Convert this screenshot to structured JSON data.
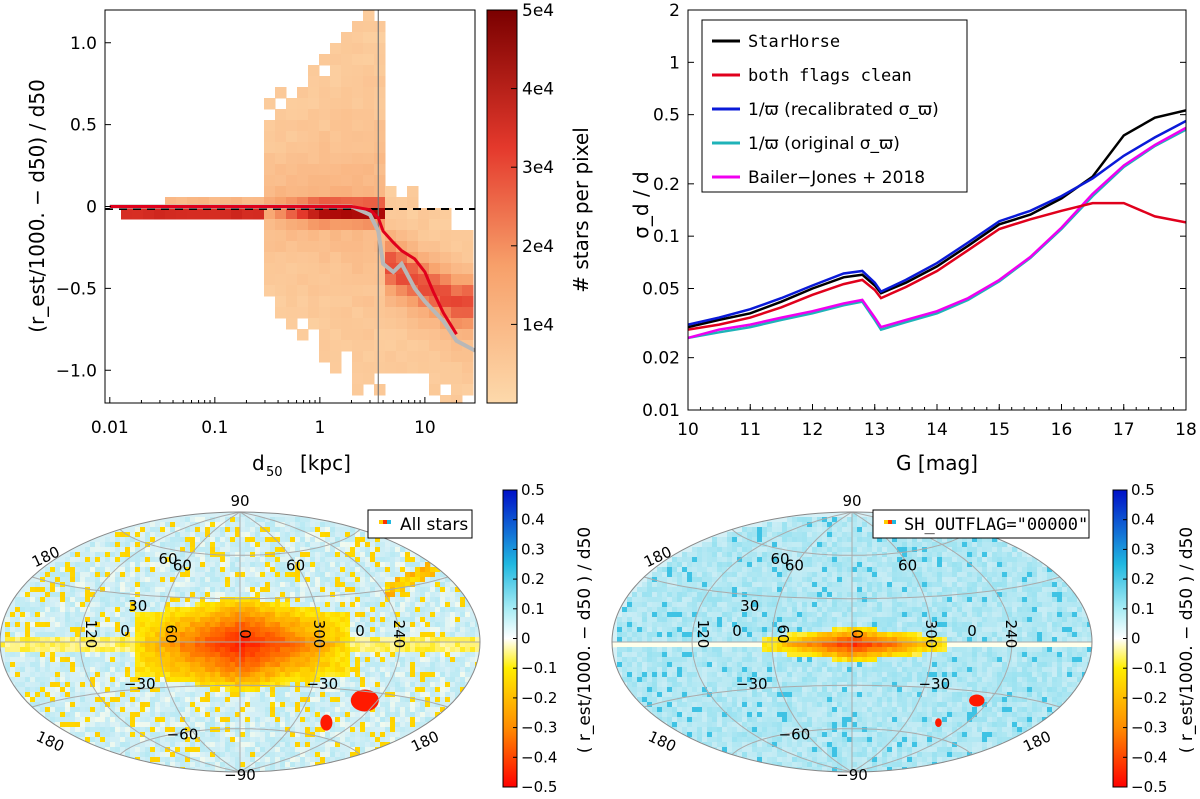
{
  "colors": {
    "starhorse": "#000000",
    "both_flags_clean": "#e0001c",
    "recalibrated": "#0a1ad8",
    "original": "#1fb3b8",
    "bailer_jones": "#f000f0",
    "density_low": "#fdd9ab",
    "density_high": "#7a0000",
    "skymap_bg": "#d6f0f6",
    "reference_dashed": "#000000",
    "median_grey": "#b8b8b8"
  },
  "chart_data": [
    {
      "id": "density",
      "type": "heatmap",
      "title": "",
      "xlabel": "d",
      "xlabel_sub": "50",
      "xlabel_unit": "[kpc]",
      "ylabel": "(r_est/1000. − d50) / d50",
      "xscale": "log",
      "xlim": [
        0.009,
        30
      ],
      "ylim": [
        -1.2,
        1.2
      ],
      "x_ticks": [
        0.01,
        0.1,
        1,
        10
      ],
      "x_tick_labels": [
        "0.01",
        "0.1",
        "1",
        "10"
      ],
      "y_ticks": [
        1.0,
        0.5,
        0,
        -0.5,
        -1.0
      ],
      "y_tick_labels": [
        "1.0",
        "0.5",
        "0",
        "−0.5",
        "−1.0"
      ],
      "reference_line_y": 0,
      "vertical_line_x": 3.6,
      "colorbar": {
        "label": "# stars per pixel",
        "range": [
          0,
          50000
        ],
        "ticks": [
          10000,
          20000,
          30000,
          40000,
          50000
        ],
        "tick_labels": [
          "1e4",
          "2e4",
          "3e4",
          "4e4",
          "5e4"
        ]
      },
      "median_red": {
        "x": [
          0.01,
          0.02,
          0.1,
          0.5,
          1,
          2,
          3,
          3.6,
          4,
          5,
          6,
          8,
          10,
          12,
          15,
          20
        ],
        "y": [
          0,
          0,
          0,
          0,
          0,
          0,
          -0.02,
          -0.07,
          -0.15,
          -0.22,
          -0.27,
          -0.32,
          -0.4,
          -0.52,
          -0.65,
          -0.78
        ]
      },
      "median_grey": {
        "x": [
          0.01,
          0.02,
          0.1,
          0.5,
          1,
          2,
          3,
          3.6,
          4,
          5,
          6,
          8,
          10,
          15,
          20,
          30
        ],
        "y": [
          0,
          0,
          0,
          0,
          0,
          0,
          -0.05,
          -0.15,
          -0.35,
          -0.4,
          -0.35,
          -0.5,
          -0.58,
          -0.7,
          -0.82,
          -0.88
        ]
      }
    },
    {
      "id": "precision",
      "type": "line",
      "xlabel": "G   [mag]",
      "ylabel": "σ_d / d",
      "yscale": "log",
      "xlim": [
        10,
        18
      ],
      "ylim": [
        0.01,
        2
      ],
      "x_ticks": [
        10,
        11,
        12,
        13,
        14,
        15,
        16,
        17,
        18
      ],
      "x_tick_labels": [
        "10",
        "11",
        "12",
        "13",
        "14",
        "15",
        "16",
        "17",
        "18"
      ],
      "y_ticks": [
        0.01,
        0.02,
        0.05,
        0.1,
        0.2,
        0.5,
        1,
        2
      ],
      "y_tick_labels": [
        "0.01",
        "0.02",
        "0.05",
        "0.1",
        "0.2",
        "0.5",
        "1",
        "2"
      ],
      "x": [
        10,
        10.5,
        11,
        11.5,
        12,
        12.5,
        12.8,
        13.0,
        13.1,
        13.5,
        14,
        14.5,
        15,
        15.5,
        16,
        16.5,
        17,
        17.5,
        18
      ],
      "series": [
        {
          "name": "StarHorse",
          "mono": true,
          "color_key": "starhorse",
          "values": [
            0.03,
            0.033,
            0.036,
            0.042,
            0.05,
            0.058,
            0.06,
            0.052,
            0.047,
            0.054,
            0.067,
            0.088,
            0.117,
            0.133,
            0.165,
            0.22,
            0.38,
            0.48,
            0.53
          ]
        },
        {
          "name": "both flags clean",
          "mono": true,
          "color_key": "both_flags_clean",
          "values": [
            0.029,
            0.031,
            0.034,
            0.039,
            0.046,
            0.053,
            0.056,
            0.049,
            0.044,
            0.051,
            0.063,
            0.083,
            0.11,
            0.125,
            0.14,
            0.155,
            0.155,
            0.13,
            0.12
          ]
        },
        {
          "name": "1/ϖ (recalibrated σ_ϖ)",
          "mono": false,
          "color_key": "recalibrated",
          "values": [
            0.031,
            0.034,
            0.038,
            0.044,
            0.052,
            0.061,
            0.063,
            0.054,
            0.048,
            0.056,
            0.07,
            0.092,
            0.122,
            0.14,
            0.17,
            0.215,
            0.29,
            0.37,
            0.46
          ]
        },
        {
          "name": "1/ϖ (original σ_ϖ)",
          "mono": false,
          "color_key": "original",
          "values": [
            0.026,
            0.028,
            0.03,
            0.033,
            0.036,
            0.04,
            0.042,
            0.033,
            0.029,
            0.032,
            0.036,
            0.043,
            0.055,
            0.075,
            0.11,
            0.17,
            0.25,
            0.33,
            0.41
          ]
        },
        {
          "name": "Bailer−Jones + 2018",
          "mono": false,
          "color_key": "bailer_jones",
          "values": [
            0.026,
            0.029,
            0.031,
            0.034,
            0.037,
            0.041,
            0.043,
            0.034,
            0.03,
            0.033,
            0.037,
            0.044,
            0.056,
            0.076,
            0.112,
            0.175,
            0.255,
            0.335,
            0.42
          ]
        }
      ]
    },
    {
      "id": "skymap_all",
      "type": "heatmap",
      "projection": "aitoff",
      "legend": "All stars",
      "lat_labels": [
        "90",
        "60",
        "30",
        "0",
        "−30",
        "−60",
        "−90"
      ],
      "lon_labels": [
        "0",
        "60",
        "120",
        "300",
        "240"
      ],
      "edge_labels": [
        "180",
        "60",
        "180",
        "180"
      ],
      "extra_labels": {
        "lat60_right": "60",
        "lat0_right": "0",
        "lat-30_right": "−30"
      },
      "colorbar": {
        "label": "( r_est/1000. − d50 ) / d50",
        "range": [
          -0.5,
          0.5
        ],
        "ticks": [
          0.5,
          0.4,
          0.3,
          0.2,
          0.1,
          0,
          -0.1,
          -0.2,
          -0.3,
          -0.4,
          -0.5
        ],
        "tick_labels": [
          "0.5",
          "0.4",
          "0.3",
          "0.2",
          "0.1",
          "0",
          "−0.1",
          "−0.2",
          "−0.3",
          "−0.4",
          "−0.5"
        ]
      }
    },
    {
      "id": "skymap_clean",
      "type": "heatmap",
      "projection": "aitoff",
      "legend": "SH_OUTFLAG=\"00000\"",
      "lat_labels": [
        "90",
        "60",
        "30",
        "0",
        "−30",
        "−60",
        "−90"
      ],
      "lon_labels": [
        "0",
        "60",
        "120",
        "300",
        "240"
      ],
      "edge_labels": [
        "180",
        "60",
        "180",
        "180"
      ],
      "extra_labels": {
        "lat60_right": "60",
        "lat0_right": "0",
        "lat-30_right": "−30"
      },
      "colorbar": {
        "label": "( r_est/1000. − d50 ) / d50",
        "range": [
          -0.5,
          0.5
        ],
        "ticks": [
          0.5,
          0.4,
          0.3,
          0.2,
          0.1,
          0,
          -0.1,
          -0.2,
          -0.3,
          -0.4,
          -0.5
        ],
        "tick_labels": [
          "0.5",
          "0.4",
          "0.3",
          "0.2",
          "0.1",
          "0",
          "−0.1",
          "−0.2",
          "−0.3",
          "−0.4",
          "−0.5"
        ]
      }
    }
  ]
}
